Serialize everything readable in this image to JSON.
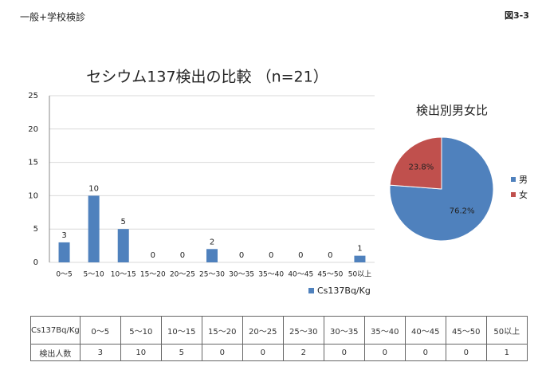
{
  "header": {
    "left": "一般+学校検診",
    "right": "図3-3"
  },
  "chart_data": [
    {
      "type": "bar",
      "title": "セシウム137検出の比較 （n=21）",
      "categories": [
        "0～5",
        "5～10",
        "10～15",
        "15～20",
        "20～25",
        "25～30",
        "30～35",
        "35～40",
        "40～45",
        "45～50",
        "50以上"
      ],
      "series": [
        {
          "name": "Cs137Bq/Kg",
          "color": "#4f81bd",
          "values": [
            3,
            10,
            5,
            0,
            0,
            2,
            0,
            0,
            0,
            0,
            1
          ]
        }
      ],
      "ylim": [
        0,
        25
      ],
      "yticks": [
        0,
        5,
        10,
        15,
        20,
        25
      ],
      "grid": true,
      "data_labels": true,
      "legend": "bottom-right"
    },
    {
      "type": "pie",
      "title": "検出別男女比",
      "categories": [
        "男",
        "女"
      ],
      "values": [
        76.2,
        23.8
      ],
      "value_labels": [
        "76.2%",
        "23.8%"
      ],
      "colors": [
        "#4f81bd",
        "#c0504d"
      ],
      "legend": "right"
    }
  ],
  "table": {
    "rows": [
      [
        "Cs137Bq/Kg",
        "0～5",
        "5～10",
        "10～15",
        "15～20",
        "20～25",
        "25～30",
        "30～35",
        "35～40",
        "40～45",
        "45～50",
        "50以上"
      ],
      [
        "検出人数",
        3,
        10,
        5,
        0,
        0,
        2,
        0,
        0,
        0,
        0,
        1
      ]
    ]
  }
}
